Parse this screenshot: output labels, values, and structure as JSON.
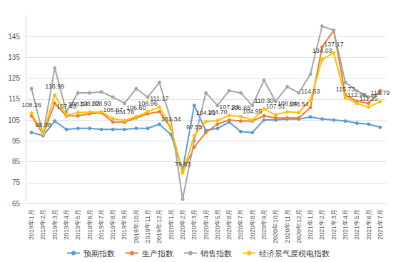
{
  "chart_data": {
    "type": "line",
    "categories": [
      "2019年1月",
      "2019年2月",
      "2019年3月",
      "2019年4月",
      "2019年5月",
      "2019年6月",
      "2019年7月",
      "2019年8月",
      "2019年9月",
      "2019年10月",
      "2019年11月",
      "2019年12月",
      "2020年1月",
      "2020年2月",
      "2020年3月",
      "2020年4月",
      "2020年5月",
      "2020年6月",
      "2020年7月",
      "2020年8月",
      "2020年9月",
      "2020年10月",
      "2020年11月",
      "2020年12月",
      "2021年1月",
      "2021年2月",
      "2021年3月",
      "2021年4月",
      "2021年5月",
      "2021年6月",
      "2021年7月"
    ],
    "ylim": [
      65,
      155
    ],
    "yticks": [
      65,
      75,
      85,
      95,
      105,
      115,
      125,
      135,
      145
    ],
    "grid": true,
    "legend": "bottom",
    "marker": "circle",
    "series": [
      {
        "name": "预期指数",
        "color": "#5b9bd5",
        "values": [
          99,
          97.5,
          104.5,
          100.5,
          101,
          101,
          100.5,
          100.5,
          100.5,
          101,
          101,
          103,
          98,
          81,
          112,
          100,
          101,
          104,
          99.5,
          99,
          105,
          105,
          105.5,
          105.5,
          106.5,
          105.5,
          105,
          104.5,
          103.5,
          103,
          101.5
        ]
      },
      {
        "name": "生产指数",
        "color": "#ed7d31",
        "values": [
          107,
          98,
          113,
          107,
          107,
          108,
          108.5,
          104,
          104,
          106,
          108,
          109,
          101,
          80,
          92,
          99,
          103,
          105,
          104.5,
          104.5,
          107,
          106,
          106,
          106,
          111,
          140,
          148,
          117,
          114,
          113,
          119
        ]
      },
      {
        "name": "销售指数",
        "color": "#a5a5a5",
        "values": [
          120,
          98,
          130,
          109,
          118,
          118,
          118.5,
          116,
          113,
          120,
          116,
          123,
          105,
          67,
          95,
          118,
          112,
          119,
          118,
          112,
          124,
          114,
          121,
          118,
          127,
          150,
          148,
          123,
          119,
          116,
          118
        ]
      },
      {
        "name": "经济景气度税电指数",
        "color": "#ffc000",
        "data_labels": true,
        "values": [
          108.26,
          98.38,
          116.99,
          107.43,
          108.54,
          108.82,
          108.93,
          105.67,
          104.76,
          106.6,
          108.96,
          111.17,
          101.34,
          79.63,
          97.55,
          104.21,
          104.7,
          107.24,
          106.65,
          104.95,
          110.3,
          107.51,
          108.94,
          108.54,
          114.53,
          134.03,
          137.17,
          115.73,
          112.96,
          111.15,
          113.79
        ],
        "value_labels": [
          "108.26",
          "98.38",
          "116.99",
          "107.43",
          "108.54",
          "108.82",
          "108.93",
          "105.67",
          "104.76",
          "106.60",
          "108.96",
          "111.17",
          "101.34",
          "79.63",
          "97.55",
          "104.21",
          "104.70",
          "107.24",
          "106.65",
          "104.95",
          "110.30",
          "107.51",
          "108.94",
          "108.54",
          "114.53",
          "134.03",
          "137.17",
          "115.73",
          "112.96",
          "111.15",
          "113.79"
        ]
      }
    ]
  }
}
